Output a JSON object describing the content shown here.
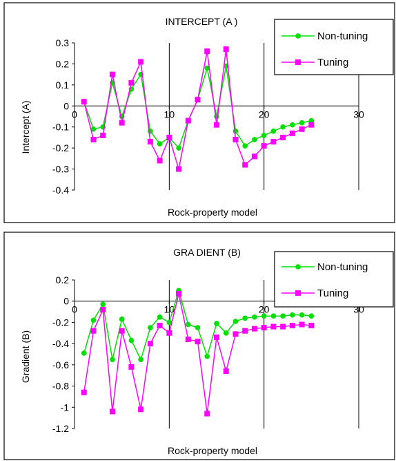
{
  "chart_data": [
    {
      "type": "line",
      "title": "INTERCEPT (A )",
      "xlabel": "Rock-property model",
      "ylabel": "Intercept (A)",
      "xlim": [
        0,
        30
      ],
      "ylim": [
        -0.4,
        0.3
      ],
      "x_ticks": [
        "0",
        "10",
        "20",
        "30"
      ],
      "y_ticks": [
        "0.3",
        "0.2",
        "0.1",
        "0",
        "-0.1",
        "-0.2",
        "-0.3",
        "-0.4"
      ],
      "legend_position": "top-right",
      "grid": "vertical",
      "x": [
        1,
        2,
        3,
        4,
        5,
        6,
        7,
        8,
        9,
        10,
        11,
        12,
        13,
        14,
        15,
        16,
        17,
        18,
        19,
        20,
        21,
        22,
        23,
        24,
        25
      ],
      "series": [
        {
          "name": "Non-tuning",
          "color": "#00e000",
          "marker": "circle",
          "values": [
            0.02,
            -0.11,
            -0.1,
            0.11,
            -0.05,
            0.08,
            0.15,
            -0.12,
            -0.18,
            -0.15,
            -0.2,
            -0.07,
            0.03,
            0.18,
            -0.05,
            0.19,
            -0.12,
            -0.19,
            -0.16,
            -0.14,
            -0.12,
            -0.1,
            -0.09,
            -0.08,
            -0.07
          ]
        },
        {
          "name": "Tuning",
          "color": "#ff00ff",
          "marker": "square",
          "values": [
            0.02,
            -0.16,
            -0.14,
            0.15,
            -0.08,
            0.11,
            0.21,
            -0.17,
            -0.26,
            -0.15,
            -0.3,
            -0.07,
            0.03,
            0.26,
            -0.09,
            0.27,
            -0.16,
            -0.28,
            -0.24,
            -0.19,
            -0.17,
            -0.15,
            -0.13,
            -0.11,
            -0.09
          ]
        }
      ]
    },
    {
      "type": "line",
      "title": "GRA DIENT (B)",
      "xlabel": "Rock-property model",
      "ylabel": "Gradient (B)",
      "xlim": [
        0,
        30
      ],
      "ylim": [
        -1.2,
        0.2
      ],
      "x_ticks": [
        "0",
        "10",
        "20",
        "30"
      ],
      "y_ticks": [
        "0.2",
        "0",
        "-0.2",
        "-0.4",
        "-0.6",
        "-0.8",
        "-1",
        "-1.2"
      ],
      "legend_position": "top-right",
      "grid": "vertical",
      "x": [
        1,
        2,
        3,
        4,
        5,
        6,
        7,
        8,
        9,
        10,
        11,
        12,
        13,
        14,
        15,
        16,
        17,
        18,
        19,
        20,
        21,
        22,
        23,
        24,
        25
      ],
      "series": [
        {
          "name": "Non-tuning",
          "color": "#00e000",
          "marker": "circle",
          "values": [
            -0.49,
            -0.18,
            -0.03,
            -0.55,
            -0.17,
            -0.37,
            -0.55,
            -0.25,
            -0.15,
            -0.2,
            0.1,
            -0.22,
            -0.25,
            -0.52,
            -0.21,
            -0.3,
            -0.19,
            -0.16,
            -0.15,
            -0.14,
            -0.14,
            -0.14,
            -0.13,
            -0.13,
            -0.14
          ]
        },
        {
          "name": "Tuning",
          "color": "#ff00ff",
          "marker": "square",
          "values": [
            -0.86,
            -0.28,
            -0.08,
            -1.04,
            -0.28,
            -0.62,
            -1.02,
            -0.4,
            -0.23,
            -0.3,
            0.07,
            -0.36,
            -0.38,
            -1.06,
            -0.34,
            -0.66,
            -0.31,
            -0.28,
            -0.26,
            -0.25,
            -0.24,
            -0.24,
            -0.23,
            -0.22,
            -0.23
          ]
        }
      ]
    }
  ]
}
